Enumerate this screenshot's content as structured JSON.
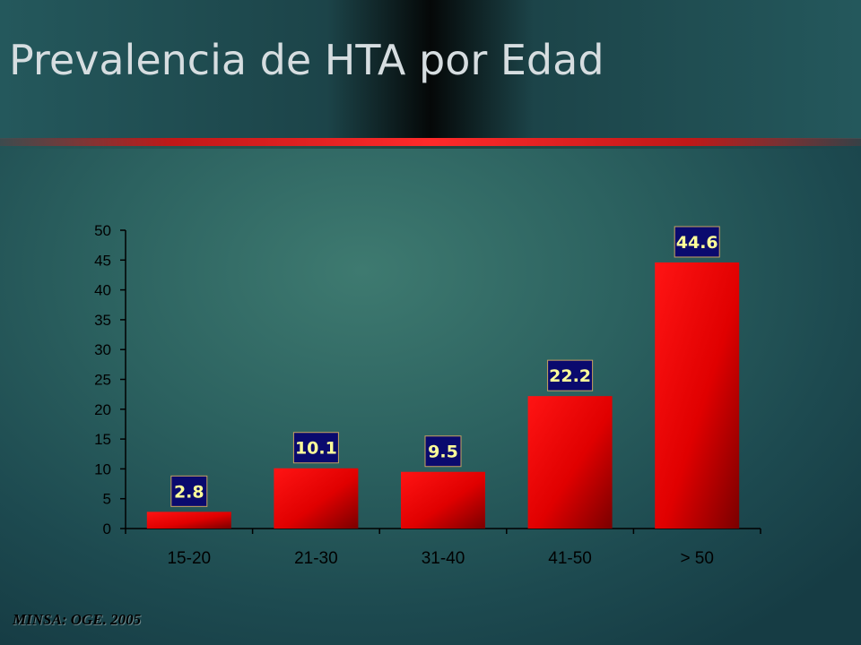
{
  "slide": {
    "title": "Prevalencia de HTA por Edad",
    "source": "MINSA: OGE. 2005"
  },
  "colors": {
    "bar": "#ff0000",
    "label_box": "#0a0a6e",
    "label_text": "#ffff99",
    "axis_text": "#000000"
  },
  "chart_data": {
    "type": "bar",
    "title": "",
    "xlabel": "",
    "ylabel": "",
    "categories": [
      "15-20",
      "21-30",
      "31-40",
      "41-50",
      "> 50"
    ],
    "values": [
      2.8,
      10.1,
      9.5,
      22.2,
      44.6
    ],
    "data_labels": [
      "2.8",
      "10.1",
      "9.5",
      "22.2",
      "44.6"
    ],
    "ylim": [
      0,
      50
    ],
    "yticks": [
      0,
      5,
      10,
      15,
      20,
      25,
      30,
      35,
      40,
      45,
      50
    ],
    "grid": false,
    "legend": "none"
  }
}
